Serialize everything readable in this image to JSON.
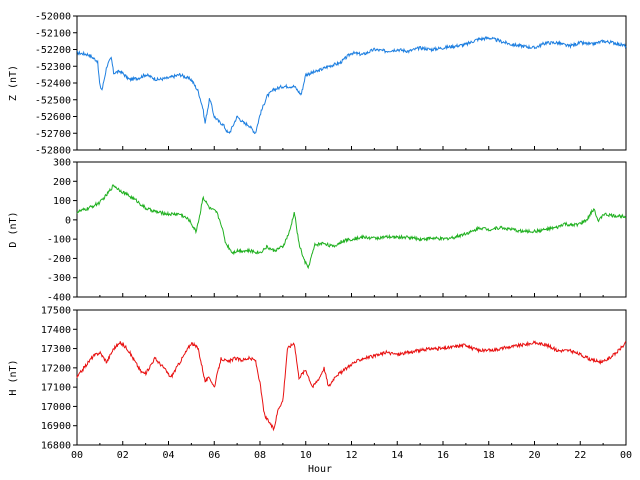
{
  "chart_data": [
    {
      "type": "line",
      "ylabel": "Z (nT)",
      "ylim": [
        -52800,
        -52000
      ],
      "yticks": [
        -52000,
        -52100,
        -52200,
        -52300,
        -52400,
        -52500,
        -52600,
        -52700,
        -52800
      ],
      "xlim": [
        0,
        24
      ],
      "color": "#1e7fe0",
      "series": [
        {
          "x": [
            0,
            0.5,
            0.9,
            1.0,
            1.1,
            1.3,
            1.5,
            1.6,
            1.9,
            2.3,
            2.7,
            3.0,
            3.5,
            4.0,
            4.5,
            5.0,
            5.3,
            5.5,
            5.6,
            5.8,
            6.0,
            6.2,
            6.4,
            6.6,
            6.7,
            7.0,
            7.3,
            7.5,
            7.8,
            8.0,
            8.3,
            8.6,
            9.0,
            9.5,
            9.8,
            10.0,
            10.5,
            11.0,
            11.5,
            12.0,
            12.5,
            13.0,
            13.5,
            14.0,
            14.5,
            15.0,
            15.5,
            16.0,
            16.5,
            17.0,
            17.5,
            18.0,
            18.5,
            19.0,
            19.5,
            20.0,
            20.5,
            21.0,
            21.5,
            22.0,
            22.5,
            23.0,
            23.5,
            24.0
          ],
          "y": [
            -52220,
            -52230,
            -52270,
            -52420,
            -52440,
            -52300,
            -52250,
            -52340,
            -52330,
            -52380,
            -52370,
            -52350,
            -52380,
            -52370,
            -52350,
            -52380,
            -52450,
            -52550,
            -52640,
            -52490,
            -52600,
            -52630,
            -52650,
            -52700,
            -52690,
            -52600,
            -52640,
            -52650,
            -52700,
            -52590,
            -52480,
            -52440,
            -52420,
            -52420,
            -52470,
            -52350,
            -52330,
            -52300,
            -52280,
            -52220,
            -52230,
            -52200,
            -52210,
            -52200,
            -52210,
            -52190,
            -52200,
            -52190,
            -52180,
            -52170,
            -52140,
            -52130,
            -52150,
            -52170,
            -52180,
            -52190,
            -52160,
            -52160,
            -52180,
            -52160,
            -52170,
            -52150,
            -52160,
            -52180
          ]
        }
      ]
    },
    {
      "type": "line",
      "ylabel": "D (nT)",
      "ylim": [
        -400,
        300
      ],
      "yticks": [
        300,
        200,
        100,
        0,
        -100,
        -200,
        -300,
        -400
      ],
      "xlim": [
        0,
        24
      ],
      "color": "#20b020",
      "series": [
        {
          "x": [
            0,
            0.5,
            1.0,
            1.3,
            1.6,
            1.8,
            2.2,
            2.6,
            3.0,
            3.5,
            4.0,
            4.5,
            4.9,
            5.2,
            5.4,
            5.5,
            5.8,
            6.1,
            6.3,
            6.5,
            6.8,
            7.0,
            7.5,
            8.0,
            8.3,
            8.6,
            9.0,
            9.3,
            9.5,
            9.7,
            9.9,
            10.1,
            10.4,
            10.8,
            11.2,
            11.6,
            12.0,
            12.5,
            13.0,
            13.5,
            14.0,
            14.5,
            15.0,
            15.5,
            16.0,
            16.5,
            17.0,
            17.3,
            17.6,
            18.0,
            18.5,
            19.0,
            19.5,
            20.0,
            20.5,
            21.0,
            21.3,
            21.6,
            22.0,
            22.3,
            22.6,
            22.8,
            23.0,
            23.5,
            24.0
          ],
          "y": [
            40,
            60,
            90,
            130,
            180,
            160,
            130,
            100,
            60,
            40,
            30,
            30,
            0,
            -60,
            40,
            120,
            60,
            40,
            -20,
            -120,
            -170,
            -160,
            -160,
            -170,
            -140,
            -160,
            -140,
            -60,
            40,
            -120,
            -200,
            -250,
            -130,
            -120,
            -140,
            -110,
            -100,
            -90,
            -95,
            -90,
            -90,
            -90,
            -100,
            -95,
            -100,
            -90,
            -70,
            -60,
            -40,
            -50,
            -40,
            -50,
            -60,
            -60,
            -50,
            -40,
            -20,
            -30,
            -20,
            0,
            60,
            -10,
            30,
            20,
            20
          ]
        }
      ]
    },
    {
      "type": "line",
      "ylabel": "H (nT)",
      "ylim": [
        16800,
        17500
      ],
      "yticks": [
        17500,
        17400,
        17300,
        17200,
        17100,
        17000,
        16900,
        16800
      ],
      "xlim": [
        0,
        24
      ],
      "xlabel": "Hour",
      "xticks": [
        "00",
        "02",
        "04",
        "06",
        "08",
        "10",
        "12",
        "14",
        "16",
        "18",
        "20",
        "22",
        "00"
      ],
      "color": "#e81010",
      "series": [
        {
          "x": [
            0,
            0.3,
            0.7,
            1.0,
            1.3,
            1.6,
            1.9,
            2.2,
            2.5,
            2.8,
            3.0,
            3.4,
            3.8,
            4.1,
            4.5,
            5.0,
            5.3,
            5.6,
            5.8,
            6.0,
            6.3,
            6.6,
            6.9,
            7.2,
            7.5,
            7.8,
            8.0,
            8.2,
            8.4,
            8.6,
            8.8,
            9.0,
            9.2,
            9.5,
            9.7,
            10.0,
            10.3,
            10.6,
            10.8,
            11.0,
            11.3,
            11.6,
            12.0,
            12.5,
            13.0,
            13.5,
            14.0,
            14.5,
            15.0,
            15.5,
            16.0,
            16.5,
            17.0,
            17.3,
            17.6,
            18.0,
            18.5,
            19.0,
            19.5,
            20.0,
            20.5,
            21.0,
            21.5,
            22.0,
            22.5,
            23.0,
            23.5,
            24.0
          ],
          "y": [
            17150,
            17200,
            17260,
            17280,
            17230,
            17300,
            17330,
            17300,
            17240,
            17180,
            17170,
            17250,
            17200,
            17150,
            17230,
            17330,
            17300,
            17130,
            17150,
            17100,
            17250,
            17230,
            17250,
            17240,
            17250,
            17240,
            17120,
            16950,
            16920,
            16880,
            16990,
            17030,
            17300,
            17330,
            17150,
            17190,
            17100,
            17150,
            17200,
            17100,
            17160,
            17180,
            17220,
            17250,
            17260,
            17280,
            17270,
            17280,
            17290,
            17300,
            17300,
            17310,
            17320,
            17300,
            17290,
            17290,
            17300,
            17310,
            17320,
            17330,
            17320,
            17290,
            17290,
            17270,
            17240,
            17230,
            17270,
            17330
          ]
        }
      ]
    }
  ]
}
